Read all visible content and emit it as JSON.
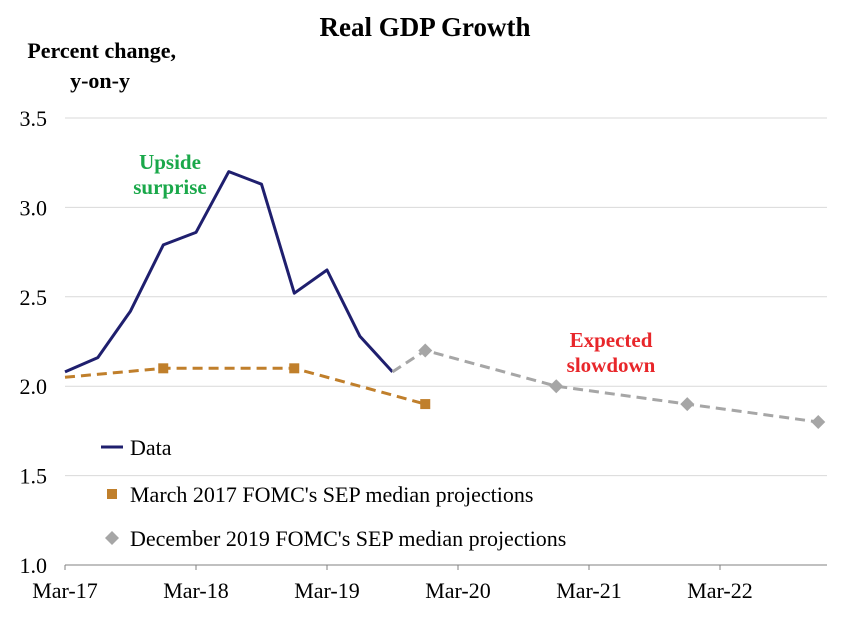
{
  "chart_data": {
    "type": "line",
    "title": "Real GDP Growth",
    "ylabel_lines": [
      "Percent change,",
      "y-on-y"
    ],
    "xlabel": "",
    "ylim": [
      1.0,
      3.5
    ],
    "yticks": [
      "1.0",
      "1.5",
      "2.0",
      "2.5",
      "3.0",
      "3.5"
    ],
    "xticks": [
      "Mar-17",
      "Mar-18",
      "Mar-19",
      "Mar-20",
      "Mar-21",
      "Mar-22"
    ],
    "grid": true,
    "legend_position": "bottom-left",
    "series": [
      {
        "name": "Data",
        "style": "solid",
        "color": "#1f1f6e",
        "points": [
          {
            "x": "Mar-17",
            "y": 2.08
          },
          {
            "x": "Jun-17",
            "y": 2.16
          },
          {
            "x": "Sep-17",
            "y": 2.42
          },
          {
            "x": "Dec-17",
            "y": 2.79
          },
          {
            "x": "Mar-18",
            "y": 2.86
          },
          {
            "x": "Jun-18",
            "y": 3.2
          },
          {
            "x": "Sep-18",
            "y": 3.13
          },
          {
            "x": "Dec-18",
            "y": 2.52
          },
          {
            "x": "Mar-19",
            "y": 2.65
          },
          {
            "x": "Jun-19",
            "y": 2.28
          },
          {
            "x": "Sep-19",
            "y": 2.08
          }
        ]
      },
      {
        "name": "March 2017 FOMC's SEP median projections",
        "style": "dashed",
        "color": "#c07f2b",
        "marker": "square",
        "points": [
          {
            "x": "Mar-17",
            "y": 2.05,
            "marker": false
          },
          {
            "x": "Dec-17",
            "y": 2.1,
            "marker": true
          },
          {
            "x": "Dec-18",
            "y": 2.1,
            "marker": true
          },
          {
            "x": "Dec-19",
            "y": 1.9,
            "marker": true
          }
        ]
      },
      {
        "name": "December 2019 FOMC's SEP median projections",
        "style": "dashed",
        "color": "#a6a6a6",
        "marker": "diamond",
        "points": [
          {
            "x": "Sep-19",
            "y": 2.08,
            "marker": false
          },
          {
            "x": "Dec-19",
            "y": 2.2,
            "marker": true
          },
          {
            "x": "Dec-20",
            "y": 2.0,
            "marker": true
          },
          {
            "x": "Dec-21",
            "y": 1.9,
            "marker": true
          },
          {
            "x": "Dec-22",
            "y": 1.8,
            "marker": true
          }
        ]
      }
    ],
    "annotations": [
      {
        "lines": [
          "Upside",
          "surprise"
        ],
        "color": "#1aa84a"
      },
      {
        "lines": [
          "Expected",
          "slowdown"
        ],
        "color": "#e8262a"
      }
    ]
  }
}
